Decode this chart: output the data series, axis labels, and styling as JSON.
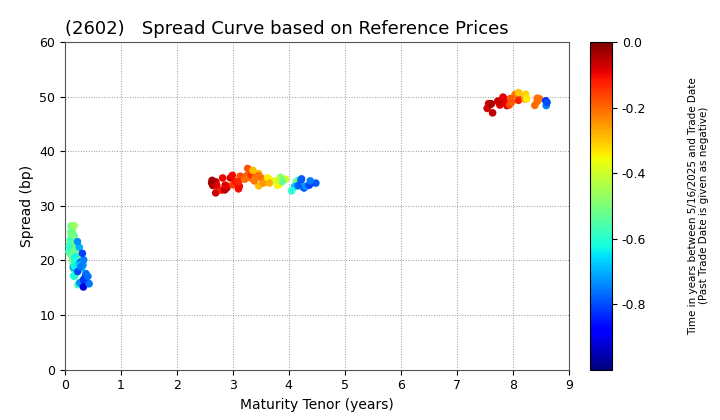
{
  "title": "(2602)   Spread Curve based on Reference Prices",
  "xlabel": "Maturity Tenor (years)",
  "ylabel": "Spread (bp)",
  "colorbar_label_line1": "Time in years between 5/16/2025 and Trade Date",
  "colorbar_label_line2": "(Past Trade Date is given as negative)",
  "xlim": [
    0,
    9
  ],
  "ylim": [
    0,
    60
  ],
  "xticks": [
    0,
    1,
    2,
    3,
    4,
    5,
    6,
    7,
    8,
    9
  ],
  "yticks": [
    0,
    10,
    20,
    30,
    40,
    50,
    60
  ],
  "cmap": "jet",
  "vmin": -1.0,
  "vmax": 0.0,
  "background_color": "#ffffff",
  "grid_color": "#999999",
  "title_fontsize": 13,
  "axis_fontsize": 10,
  "tick_fontsize": 9,
  "colorbar_tick_fontsize": 9,
  "colorbar_label_fontsize": 7.5,
  "marker_size": 30
}
